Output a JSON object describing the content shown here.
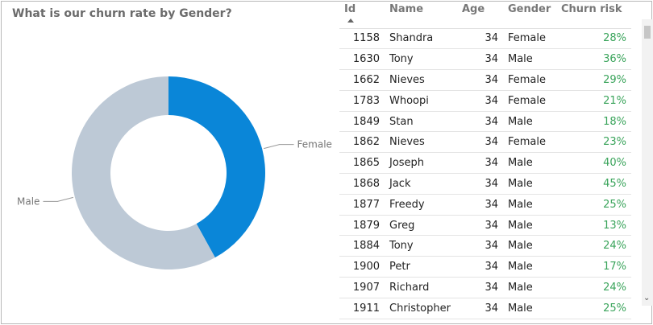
{
  "chart": {
    "title": "What is our churn rate by Gender?",
    "colors": {
      "female": "#0a86d8",
      "male": "#bdc9d6"
    }
  },
  "chart_data": {
    "type": "pie",
    "categories": [
      "Female",
      "Male"
    ],
    "values": [
      42,
      58
    ],
    "title": "What is our churn rate by Gender?",
    "legend": "leader-labels"
  },
  "table": {
    "columns": [
      "Id",
      "Name",
      "Age",
      "Gender",
      "Churn risk"
    ],
    "sort_icon": "sort-ascending-icon",
    "rows": [
      [
        "1158",
        "Shandra",
        "34",
        "Female",
        "28%"
      ],
      [
        "1630",
        "Tony",
        "34",
        "Male",
        "36%"
      ],
      [
        "1662",
        "Nieves",
        "34",
        "Female",
        "29%"
      ],
      [
        "1783",
        "Whoopi",
        "34",
        "Female",
        "21%"
      ],
      [
        "1849",
        "Stan",
        "34",
        "Male",
        "18%"
      ],
      [
        "1862",
        "Nieves",
        "34",
        "Female",
        "23%"
      ],
      [
        "1865",
        "Joseph",
        "34",
        "Male",
        "40%"
      ],
      [
        "1868",
        "Jack",
        "34",
        "Male",
        "45%"
      ],
      [
        "1877",
        "Freedy",
        "34",
        "Male",
        "25%"
      ],
      [
        "1879",
        "Greg",
        "34",
        "Male",
        "13%"
      ],
      [
        "1884",
        "Tony",
        "34",
        "Male",
        "24%"
      ],
      [
        "1900",
        "Petr",
        "34",
        "Male",
        "17%"
      ],
      [
        "1907",
        "Richard",
        "34",
        "Male",
        "24%"
      ],
      [
        "1911",
        "Christopher",
        "34",
        "Male",
        "25%"
      ]
    ],
    "risk_color": "#3aa45b"
  },
  "scrollbar": {
    "down_arrow": "⌄"
  }
}
